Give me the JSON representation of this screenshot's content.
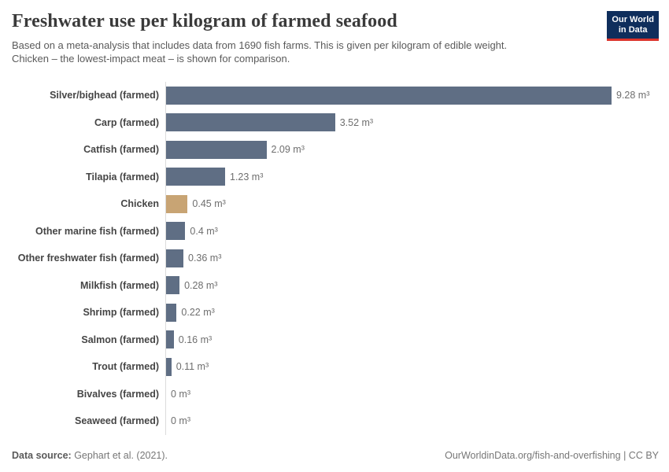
{
  "header": {
    "title": "Freshwater use per kilogram of farmed seafood",
    "subtitle_line1": "Based on a meta-analysis that includes data from 1690 fish farms. This is given per kilogram of edible weight.",
    "subtitle_line2": "Chicken – the lowest-impact meat – is shown for comparison.",
    "logo": {
      "line1": "Our World",
      "line2": "in Data",
      "bg_color": "#0f2e5c",
      "accent_color": "#dc332b"
    }
  },
  "chart_data": {
    "type": "bar",
    "orientation": "horizontal",
    "unit": "m³",
    "categories": [
      "Silver/bighead (farmed)",
      "Carp (farmed)",
      "Catfish (farmed)",
      "Tilapia (farmed)",
      "Chicken",
      "Other marine fish (farmed)",
      "Other freshwater fish (farmed)",
      "Milkfish (farmed)",
      "Shrimp (farmed)",
      "Salmon (farmed)",
      "Trout (farmed)",
      "Bivalves (farmed)",
      "Seaweed (farmed)"
    ],
    "values": [
      9.28,
      3.52,
      2.09,
      1.23,
      0.45,
      0.4,
      0.36,
      0.28,
      0.22,
      0.16,
      0.11,
      0,
      0
    ],
    "value_labels": [
      "9.28 m³",
      "3.52 m³",
      "2.09 m³",
      "1.23 m³",
      "0.45 m³",
      "0.4 m³",
      "0.36 m³",
      "0.28 m³",
      "0.22 m³",
      "0.16 m³",
      "0.11 m³",
      "0 m³",
      "0 m³"
    ],
    "xlim": [
      0,
      9.28
    ],
    "bar_color": "#5f6e84",
    "highlight_color": "#c8a474",
    "highlight_index": 4,
    "axis_color": "#dcdcdc",
    "grid": false,
    "legend": false
  },
  "footer": {
    "source_label": "Data source:",
    "source_value": " Gephart et al. (2021).",
    "link_text": "OurWorldinData.org/fish-and-overfishing",
    "license_suffix": " | CC BY"
  }
}
